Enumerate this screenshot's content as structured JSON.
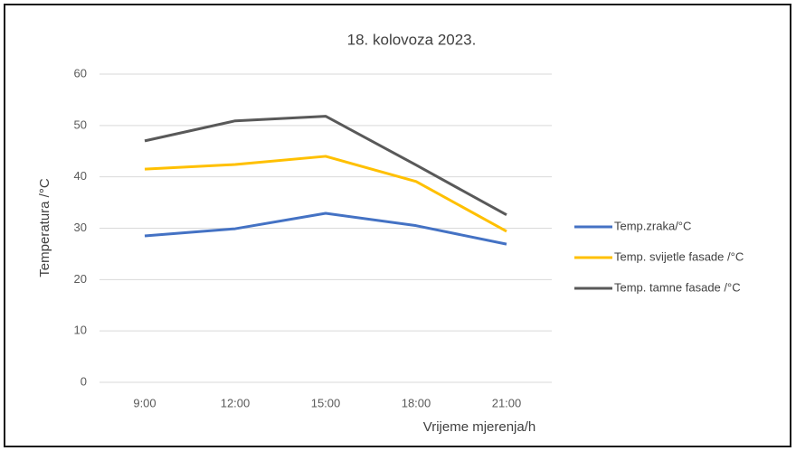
{
  "chart_data": {
    "type": "line",
    "title": "18. kolovoza 2023.",
    "x_label": "Vrijeme mjerenja/h",
    "y_label": "Temperatura /°C",
    "categories": [
      "9:00",
      "12:00",
      "15:00",
      "18:00",
      "21:00"
    ],
    "series": [
      {
        "name": "Temp.zraka/°C",
        "color": "#4472c4",
        "values": [
          28.5,
          29.9,
          32.9,
          30.5,
          26.9
        ]
      },
      {
        "name": "Temp. svijetle fasade /°C",
        "color": "#ffc000",
        "values": [
          41.5,
          42.4,
          44.0,
          39.1,
          29.4
        ]
      },
      {
        "name": "Temp. tamne fasade /°C",
        "color": "#595959",
        "values": [
          47.0,
          50.9,
          51.8,
          42.3,
          32.6
        ]
      }
    ],
    "ylim": [
      0,
      60
    ],
    "yticks": [
      0,
      10,
      20,
      30,
      40,
      50,
      60
    ],
    "grid": true,
    "legend": "right"
  }
}
